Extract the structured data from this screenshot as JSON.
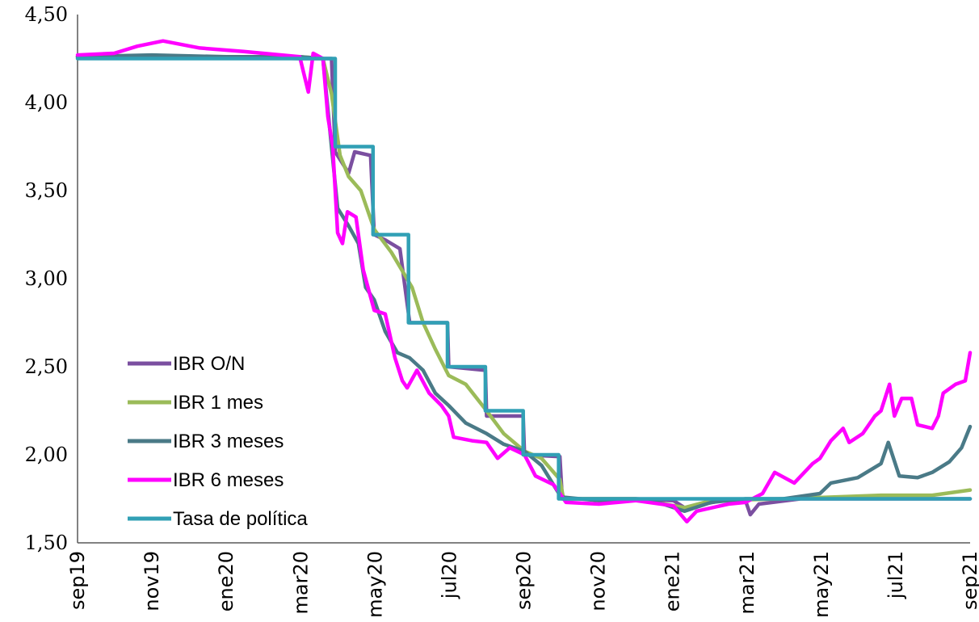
{
  "chart_data": {
    "type": "line",
    "title": "",
    "xlabel": "",
    "ylabel": "",
    "ylim": [
      1.5,
      4.5
    ],
    "y_ticks": [
      "1,50",
      "2,00",
      "2,50",
      "3,00",
      "3,50",
      "4,00",
      "4,50"
    ],
    "x_ticks": [
      "sep19",
      "nov19",
      "ene20",
      "mar20",
      "may20",
      "jul20",
      "sep20",
      "nov20",
      "ene21",
      "mar21",
      "may21",
      "jul21",
      "sep21"
    ],
    "x_range": [
      "2019-09-01",
      "2021-09-01"
    ],
    "grid": false,
    "legend_position": "bottom-left",
    "series": [
      {
        "name": "IBR O/N",
        "color": "#7b4fa0",
        "points": [
          [
            "2019-09-01",
            4.26
          ],
          [
            "2019-11-01",
            4.26
          ],
          [
            "2020-01-01",
            4.26
          ],
          [
            "2020-03-01",
            4.25
          ],
          [
            "2020-03-27",
            4.25
          ],
          [
            "2020-03-30",
            3.72
          ],
          [
            "2020-04-10",
            3.6
          ],
          [
            "2020-04-15",
            3.72
          ],
          [
            "2020-04-28",
            3.7
          ],
          [
            "2020-05-01",
            3.25
          ],
          [
            "2020-05-10",
            3.22
          ],
          [
            "2020-05-22",
            3.17
          ],
          [
            "2020-05-30",
            2.75
          ],
          [
            "2020-06-30",
            2.75
          ],
          [
            "2020-07-01",
            2.5
          ],
          [
            "2020-07-31",
            2.48
          ],
          [
            "2020-08-01",
            2.22
          ],
          [
            "2020-08-31",
            2.22
          ],
          [
            "2020-09-01",
            2.0
          ],
          [
            "2020-09-30",
            1.99
          ],
          [
            "2020-10-02",
            1.75
          ],
          [
            "2020-12-01",
            1.75
          ],
          [
            "2021-01-01",
            1.74
          ],
          [
            "2021-01-10",
            1.7
          ],
          [
            "2021-02-10",
            1.74
          ],
          [
            "2021-03-01",
            1.74
          ],
          [
            "2021-03-05",
            1.66
          ],
          [
            "2021-03-12",
            1.72
          ],
          [
            "2021-04-15",
            1.75
          ],
          [
            "2021-09-01",
            1.75
          ]
        ]
      },
      {
        "name": "IBR 1 mes",
        "color": "#9bbb59",
        "points": [
          [
            "2019-09-01",
            4.26
          ],
          [
            "2019-11-01",
            4.26
          ],
          [
            "2020-01-01",
            4.26
          ],
          [
            "2020-03-01",
            4.26
          ],
          [
            "2020-03-20",
            4.25
          ],
          [
            "2020-03-27",
            4.05
          ],
          [
            "2020-04-03",
            3.7
          ],
          [
            "2020-04-10",
            3.58
          ],
          [
            "2020-04-20",
            3.5
          ],
          [
            "2020-05-01",
            3.28
          ],
          [
            "2020-05-15",
            3.15
          ],
          [
            "2020-06-01",
            2.95
          ],
          [
            "2020-06-10",
            2.75
          ],
          [
            "2020-06-20",
            2.6
          ],
          [
            "2020-07-01",
            2.45
          ],
          [
            "2020-07-15",
            2.4
          ],
          [
            "2020-08-01",
            2.25
          ],
          [
            "2020-08-15",
            2.12
          ],
          [
            "2020-09-01",
            2.02
          ],
          [
            "2020-09-15",
            1.98
          ],
          [
            "2020-09-30",
            1.86
          ],
          [
            "2020-10-03",
            1.75
          ],
          [
            "2020-12-01",
            1.75
          ],
          [
            "2021-01-10",
            1.7
          ],
          [
            "2021-02-01",
            1.74
          ],
          [
            "2021-04-01",
            1.75
          ],
          [
            "2021-06-20",
            1.77
          ],
          [
            "2021-08-01",
            1.77
          ],
          [
            "2021-09-01",
            1.8
          ]
        ]
      },
      {
        "name": "IBR 3 meses",
        "color": "#4a7a87",
        "points": [
          [
            "2019-09-01",
            4.26
          ],
          [
            "2019-11-01",
            4.27
          ],
          [
            "2020-01-01",
            4.26
          ],
          [
            "2020-03-01",
            4.26
          ],
          [
            "2020-03-20",
            4.25
          ],
          [
            "2020-03-27",
            3.75
          ],
          [
            "2020-04-01",
            3.4
          ],
          [
            "2020-04-10",
            3.3
          ],
          [
            "2020-04-18",
            3.2
          ],
          [
            "2020-04-24",
            2.95
          ],
          [
            "2020-05-01",
            2.88
          ],
          [
            "2020-05-10",
            2.7
          ],
          [
            "2020-05-20",
            2.58
          ],
          [
            "2020-05-30",
            2.55
          ],
          [
            "2020-06-10",
            2.48
          ],
          [
            "2020-06-20",
            2.35
          ],
          [
            "2020-07-01",
            2.28
          ],
          [
            "2020-07-15",
            2.18
          ],
          [
            "2020-08-01",
            2.12
          ],
          [
            "2020-08-15",
            2.06
          ],
          [
            "2020-09-01",
            2.02
          ],
          [
            "2020-09-15",
            1.94
          ],
          [
            "2020-10-01",
            1.76
          ],
          [
            "2020-11-01",
            1.74
          ],
          [
            "2020-12-15",
            1.74
          ],
          [
            "2021-01-10",
            1.68
          ],
          [
            "2021-02-01",
            1.73
          ],
          [
            "2021-03-01",
            1.75
          ],
          [
            "2021-04-01",
            1.75
          ],
          [
            "2021-05-01",
            1.78
          ],
          [
            "2021-05-10",
            1.84
          ],
          [
            "2021-06-01",
            1.87
          ],
          [
            "2021-06-20",
            1.95
          ],
          [
            "2021-06-26",
            2.07
          ],
          [
            "2021-07-05",
            1.88
          ],
          [
            "2021-07-20",
            1.87
          ],
          [
            "2021-08-01",
            1.9
          ],
          [
            "2021-08-15",
            1.96
          ],
          [
            "2021-08-25",
            2.04
          ],
          [
            "2021-09-01",
            2.16
          ]
        ]
      },
      {
        "name": "IBR 6 meses",
        "color": "#ff00ff",
        "points": [
          [
            "2019-09-01",
            4.27
          ],
          [
            "2019-10-01",
            4.28
          ],
          [
            "2019-10-20",
            4.32
          ],
          [
            "2019-11-10",
            4.35
          ],
          [
            "2019-12-10",
            4.31
          ],
          [
            "2020-01-15",
            4.29
          ],
          [
            "2020-02-15",
            4.27
          ],
          [
            "2020-03-01",
            4.26
          ],
          [
            "2020-03-08",
            4.06
          ],
          [
            "2020-03-12",
            4.28
          ],
          [
            "2020-03-20",
            4.25
          ],
          [
            "2020-03-24",
            3.92
          ],
          [
            "2020-03-28",
            3.75
          ],
          [
            "2020-04-01",
            3.26
          ],
          [
            "2020-04-05",
            3.2
          ],
          [
            "2020-04-09",
            3.38
          ],
          [
            "2020-04-16",
            3.35
          ],
          [
            "2020-04-22",
            3.05
          ],
          [
            "2020-05-01",
            2.82
          ],
          [
            "2020-05-10",
            2.8
          ],
          [
            "2020-05-18",
            2.55
          ],
          [
            "2020-05-24",
            2.42
          ],
          [
            "2020-05-28",
            2.38
          ],
          [
            "2020-06-05",
            2.48
          ],
          [
            "2020-06-15",
            2.35
          ],
          [
            "2020-06-25",
            2.28
          ],
          [
            "2020-07-01",
            2.22
          ],
          [
            "2020-07-05",
            2.1
          ],
          [
            "2020-07-20",
            2.08
          ],
          [
            "2020-08-01",
            2.07
          ],
          [
            "2020-08-10",
            1.98
          ],
          [
            "2020-08-20",
            2.04
          ],
          [
            "2020-09-01",
            2.0
          ],
          [
            "2020-09-10",
            1.88
          ],
          [
            "2020-09-25",
            1.83
          ],
          [
            "2020-10-05",
            1.73
          ],
          [
            "2020-11-01",
            1.72
          ],
          [
            "2020-12-01",
            1.74
          ],
          [
            "2021-01-01",
            1.71
          ],
          [
            "2021-01-12",
            1.62
          ],
          [
            "2021-01-20",
            1.68
          ],
          [
            "2021-02-15",
            1.72
          ],
          [
            "2021-03-01",
            1.73
          ],
          [
            "2021-03-15",
            1.78
          ],
          [
            "2021-03-25",
            1.9
          ],
          [
            "2021-04-10",
            1.84
          ],
          [
            "2021-04-25",
            1.95
          ],
          [
            "2021-05-01",
            1.98
          ],
          [
            "2021-05-10",
            2.08
          ],
          [
            "2021-05-20",
            2.15
          ],
          [
            "2021-05-25",
            2.07
          ],
          [
            "2021-06-05",
            2.12
          ],
          [
            "2021-06-15",
            2.22
          ],
          [
            "2021-06-20",
            2.25
          ],
          [
            "2021-06-27",
            2.4
          ],
          [
            "2021-07-01",
            2.22
          ],
          [
            "2021-07-07",
            2.32
          ],
          [
            "2021-07-15",
            2.32
          ],
          [
            "2021-07-20",
            2.17
          ],
          [
            "2021-08-01",
            2.15
          ],
          [
            "2021-08-06",
            2.22
          ],
          [
            "2021-08-10",
            2.35
          ],
          [
            "2021-08-20",
            2.4
          ],
          [
            "2021-08-28",
            2.42
          ],
          [
            "2021-09-01",
            2.58
          ]
        ]
      },
      {
        "name": "Tasa de política",
        "color": "#31a0b5",
        "points": [
          [
            "2019-09-01",
            4.25
          ],
          [
            "2020-03-30",
            4.25
          ],
          [
            "2020-03-30",
            3.75
          ],
          [
            "2020-04-30",
            3.75
          ],
          [
            "2020-04-30",
            3.25
          ],
          [
            "2020-05-29",
            3.25
          ],
          [
            "2020-05-29",
            2.75
          ],
          [
            "2020-06-30",
            2.75
          ],
          [
            "2020-06-30",
            2.5
          ],
          [
            "2020-07-31",
            2.5
          ],
          [
            "2020-07-31",
            2.25
          ],
          [
            "2020-08-31",
            2.25
          ],
          [
            "2020-08-31",
            2.0
          ],
          [
            "2020-09-29",
            2.0
          ],
          [
            "2020-09-29",
            1.75
          ],
          [
            "2021-09-01",
            1.75
          ]
        ]
      }
    ]
  }
}
